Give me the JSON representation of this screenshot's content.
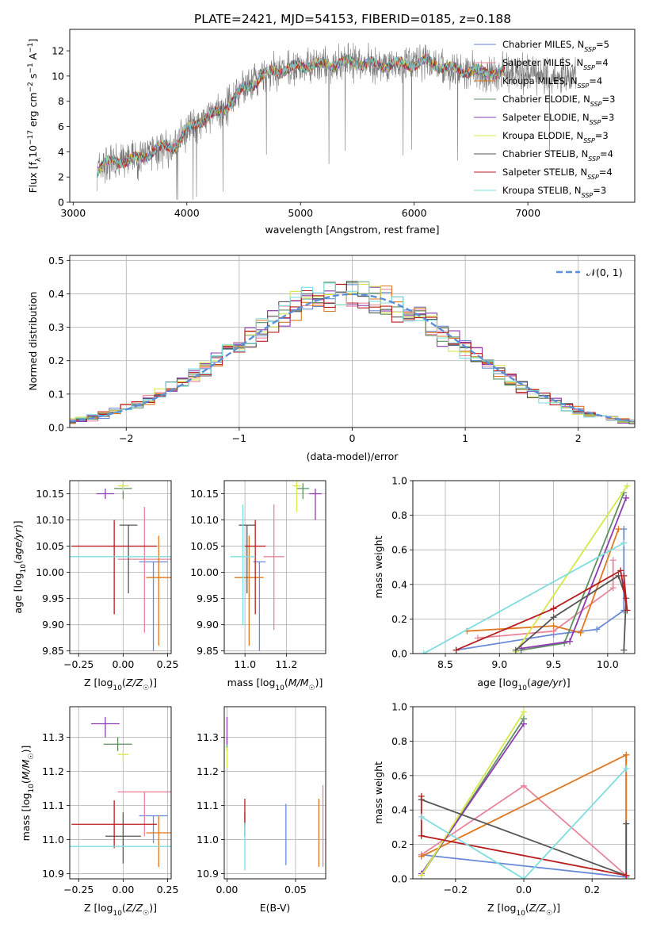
{
  "figure": {
    "title": "PLATE=2421, MJD=54153, FIBERID=0185, z=0.188"
  },
  "colors": {
    "Chabrier MILES": "#6a8ad8",
    "Salpeter MILES": "#e8859a",
    "Kroupa MILES": "#e0771f",
    "Chabrier ELODIE": "#5f8f60",
    "Salpeter ELODIE": "#8e3bb3",
    "Kroupa ELODIE": "#d6e84a",
    "Chabrier STELIB": "#555555",
    "Salpeter STELIB": "#b81e1e",
    "Kroupa STELIB": "#7fdde0"
  },
  "chart_data": [
    {
      "id": "spectrum",
      "type": "line",
      "title": "PLATE=2421, MJD=54153, FIBERID=0185, z=0.188",
      "xlabel": "wavelength [Angstrom, rest frame]",
      "ylabel": "Flux [f_λ 10^-17 erg cm^-2 s^-1 A^-1]",
      "xlim": [
        2970,
        7940
      ],
      "ylim": [
        0,
        13.7
      ],
      "xticks": [
        3000,
        4000,
        5000,
        6000,
        7000
      ],
      "yticks": [
        0,
        2,
        4,
        6,
        8,
        10,
        12
      ],
      "grid": false,
      "legend_position": "right",
      "legend": [
        {
          "label": "Chabrier MILES, N",
          "sub": "SSP",
          "suffix": "=5",
          "model": "Chabrier MILES"
        },
        {
          "label": "Salpeter MILES, N",
          "sub": "SSP",
          "suffix": "=4",
          "model": "Salpeter MILES"
        },
        {
          "label": "Kroupa MILES, N",
          "sub": "SSP",
          "suffix": "=4",
          "model": "Kroupa MILES"
        },
        {
          "label": "Chabrier ELODIE, N",
          "sub": "SSP",
          "suffix": "=3",
          "model": "Chabrier ELODIE"
        },
        {
          "label": "Salpeter ELODIE, N",
          "sub": "SSP",
          "suffix": "=3",
          "model": "Salpeter ELODIE"
        },
        {
          "label": "Kroupa ELODIE, N",
          "sub": "SSP",
          "suffix": "=3",
          "model": "Kroupa ELODIE"
        },
        {
          "label": "Chabrier STELIB, N",
          "sub": "SSP",
          "suffix": "=4",
          "model": "Chabrier STELIB"
        },
        {
          "label": "Salpeter STELIB, N",
          "sub": "SSP",
          "suffix": "=4",
          "model": "Salpeter STELIB"
        },
        {
          "label": "Kroupa STELIB, N",
          "sub": "SSP",
          "suffix": "=3",
          "model": "Kroupa STELIB"
        }
      ],
      "continuum": [
        [
          3210,
          2.6
        ],
        [
          3300,
          3.1
        ],
        [
          3400,
          3.3
        ],
        [
          3500,
          3.3
        ],
        [
          3600,
          3.5
        ],
        [
          3700,
          4.1
        ],
        [
          3800,
          4.3
        ],
        [
          3900,
          4.5
        ],
        [
          4000,
          5.6
        ],
        [
          4100,
          6.4
        ],
        [
          4200,
          6.8
        ],
        [
          4300,
          7.2
        ],
        [
          4400,
          8.1
        ],
        [
          4500,
          9.0
        ],
        [
          4600,
          9.5
        ],
        [
          4700,
          10.2
        ],
        [
          4800,
          10.4
        ],
        [
          4900,
          10.5
        ],
        [
          5000,
          10.8
        ],
        [
          5100,
          10.9
        ],
        [
          5200,
          10.8
        ],
        [
          5300,
          11.0
        ],
        [
          5400,
          11.1
        ],
        [
          5500,
          11.1
        ],
        [
          5600,
          11.0
        ],
        [
          5700,
          10.8
        ],
        [
          5800,
          11.0
        ],
        [
          5900,
          10.9
        ],
        [
          6000,
          11.0
        ],
        [
          6100,
          11.1
        ],
        [
          6200,
          10.9
        ],
        [
          6300,
          10.6
        ],
        [
          6400,
          10.5
        ],
        [
          6500,
          10.4
        ],
        [
          6600,
          10.3
        ],
        [
          6700,
          10.3
        ],
        [
          6800,
          10.2
        ]
      ],
      "model_wavelength_range": [
        3210,
        6800
      ],
      "observed_wavelength_range": [
        3210,
        7420
      ]
    },
    {
      "id": "residuals",
      "type": "line",
      "xlabel": "(data-model)/error",
      "ylabel": "Normed distribution",
      "xlim": [
        -2.5,
        2.5
      ],
      "ylim": [
        0,
        0.515
      ],
      "xticks": [
        -2,
        -1,
        0,
        1,
        2
      ],
      "yticks": [
        0.0,
        0.1,
        0.2,
        0.3,
        0.4,
        0.5
      ],
      "grid": true,
      "legend_position": "top-right",
      "reference_curve": {
        "label": "𝒩(0, 1)",
        "mean": 0,
        "sigma": 1,
        "style": "dashed"
      },
      "histogram": {
        "bin_width": 0.1,
        "distribution": "normal",
        "sigma": 1.0
      }
    },
    {
      "id": "age_vs_Z",
      "type": "scatter",
      "xlabel": "Z [log10(Z/Z☉)]",
      "ylabel": "age  [log10(age/yr)]",
      "xlim": [
        -0.3,
        0.27
      ],
      "ylim": [
        9.845,
        10.175
      ],
      "xticks": [
        -0.25,
        0.0,
        0.25
      ],
      "yticks": [
        9.85,
        9.9,
        9.95,
        10.0,
        10.05,
        10.1,
        10.15
      ],
      "grid": true,
      "points": [
        {
          "model": "Chabrier MILES",
          "x": 0.17,
          "y": 10.02,
          "xerr": 0.08,
          "yerr": [
            0.17,
            0.0
          ]
        },
        {
          "model": "Salpeter MILES",
          "x": 0.12,
          "y": 10.025,
          "xerr": 0.15,
          "yerr": [
            0.14,
            0.1
          ]
        },
        {
          "model": "Kroupa MILES",
          "x": 0.2,
          "y": 9.99,
          "xerr": 0.07,
          "yerr": [
            0.13,
            0.08
          ]
        },
        {
          "model": "Chabrier ELODIE",
          "x": 0.0,
          "y": 10.16,
          "xerr": 0.05,
          "yerr": [
            0.02,
            0.01
          ]
        },
        {
          "model": "Salpeter ELODIE",
          "x": -0.1,
          "y": 10.15,
          "xerr": 0.05,
          "yerr": [
            0.01,
            0.01
          ]
        },
        {
          "model": "Kroupa ELODIE",
          "x": 0.0,
          "y": 10.165,
          "xerr": 0.03,
          "yerr": [
            0.01,
            0.01
          ]
        },
        {
          "model": "Chabrier STELIB",
          "x": 0.03,
          "y": 10.09,
          "xerr": 0.05,
          "yerr": [
            0.13,
            0.0
          ]
        },
        {
          "model": "Salpeter STELIB",
          "x": -0.05,
          "y": 10.05,
          "xerr": 0.24,
          "yerr": [
            0.13,
            0.05
          ]
        },
        {
          "model": "Kroupa STELIB",
          "x": 0.0,
          "y": 10.03,
          "xerr": 0.3,
          "yerr": [
            0.0,
            0.0
          ]
        }
      ]
    },
    {
      "id": "age_vs_mass",
      "type": "scatter",
      "xlabel": "mass [log10(M/M☉)]",
      "xlim": [
        10.9,
        11.39
      ],
      "ylim": [
        9.845,
        10.175
      ],
      "xticks": [
        11.0,
        11.2
      ],
      "yticks": [
        9.85,
        9.9,
        9.95,
        10.0,
        10.05,
        10.1,
        10.15
      ],
      "grid": true,
      "points": [
        {
          "model": "Chabrier MILES",
          "x": 11.07,
          "y": 10.02,
          "xerr": 0.03,
          "yerr": [
            0.17,
            0.0
          ]
        },
        {
          "model": "Salpeter MILES",
          "x": 11.14,
          "y": 10.03,
          "xerr": 0.05,
          "yerr": [
            0.14,
            0.1
          ]
        },
        {
          "model": "Kroupa MILES",
          "x": 11.02,
          "y": 9.99,
          "xerr": 0.07,
          "yerr": [
            0.13,
            0.08
          ]
        },
        {
          "model": "Chabrier ELODIE",
          "x": 11.28,
          "y": 10.16,
          "xerr": 0.03,
          "yerr": [
            0.02,
            0.01
          ]
        },
        {
          "model": "Salpeter ELODIE",
          "x": 11.34,
          "y": 10.15,
          "xerr": 0.03,
          "yerr": [
            0.05,
            0.01
          ]
        },
        {
          "model": "Kroupa ELODIE",
          "x": 11.25,
          "y": 10.165,
          "xerr": 0.02,
          "yerr": [
            0.05,
            0.01
          ]
        },
        {
          "model": "Chabrier STELIB",
          "x": 11.01,
          "y": 10.09,
          "xerr": 0.04,
          "yerr": [
            0.13,
            0.0
          ]
        },
        {
          "model": "Salpeter STELIB",
          "x": 11.05,
          "y": 10.05,
          "xerr": 0.05,
          "yerr": [
            0.13,
            0.05
          ]
        },
        {
          "model": "Kroupa STELIB",
          "x": 10.99,
          "y": 10.03,
          "xerr": 0.06,
          "yerr": [
            0.13,
            0.1
          ]
        }
      ]
    },
    {
      "id": "mass_weight_vs_age",
      "type": "line",
      "xlabel": "age  [log10(age/yr)]",
      "ylabel": "mass weight",
      "xlim": [
        8.2,
        10.25
      ],
      "ylim": [
        0,
        1
      ],
      "xticks": [
        8.5,
        9.0,
        9.5,
        10.0
      ],
      "yticks": [
        0.0,
        0.2,
        0.4,
        0.6,
        0.8,
        1.0
      ],
      "grid": true,
      "series": [
        {
          "model": "Chabrier MILES",
          "x": [
            8.6,
            9.5,
            9.9,
            10.15,
            10.15
          ],
          "y": [
            0.02,
            0.11,
            0.14,
            0.25,
            0.72
          ]
        },
        {
          "model": "Salpeter MILES",
          "x": [
            8.8,
            9.5,
            10.05,
            10.05
          ],
          "y": [
            0.09,
            0.13,
            0.38,
            0.54
          ]
        },
        {
          "model": "Kroupa MILES",
          "x": [
            8.7,
            9.5,
            9.75,
            10.1
          ],
          "y": [
            0.13,
            0.16,
            0.12,
            0.72
          ]
        },
        {
          "model": "Chabrier ELODIE",
          "x": [
            9.2,
            9.6,
            10.15
          ],
          "y": [
            0.02,
            0.06,
            0.93
          ]
        },
        {
          "model": "Salpeter ELODIE",
          "x": [
            9.2,
            9.65,
            10.17
          ],
          "y": [
            0.03,
            0.07,
            0.9
          ]
        },
        {
          "model": "Kroupa ELODIE",
          "x": [
            9.15,
            10.18
          ],
          "y": [
            0.01,
            0.97
          ]
        },
        {
          "model": "Chabrier STELIB",
          "x": [
            9.15,
            9.5,
            10.1,
            10.17,
            10.15
          ],
          "y": [
            0.02,
            0.21,
            0.45,
            0.32,
            0.02
          ]
        },
        {
          "model": "Salpeter STELIB",
          "x": [
            8.6,
            9.5,
            10.12,
            10.18,
            10.15
          ],
          "y": [
            0.02,
            0.26,
            0.48,
            0.25,
            0.45
          ]
        },
        {
          "model": "Kroupa STELIB",
          "x": [
            8.3,
            10.15
          ],
          "y": [
            0.0,
            0.64
          ]
        }
      ]
    },
    {
      "id": "mass_vs_Z",
      "type": "scatter",
      "xlabel": "Z [log10(Z/Z☉)]",
      "ylabel": "mass [log10(M/M☉)]",
      "xlim": [
        -0.3,
        0.27
      ],
      "ylim": [
        10.885,
        11.39
      ],
      "xticks": [
        -0.25,
        0.0,
        0.25
      ],
      "yticks": [
        10.9,
        11.0,
        11.1,
        11.2,
        11.3
      ],
      "grid": true,
      "points": [
        {
          "model": "Chabrier MILES",
          "x": 0.17,
          "y": 11.07,
          "xerr": 0.08,
          "yerr": [
            0.08,
            0.0
          ]
        },
        {
          "model": "Salpeter MILES",
          "x": 0.12,
          "y": 11.14,
          "xerr": 0.15,
          "yerr": [
            0.13,
            0.0
          ]
        },
        {
          "model": "Kroupa MILES",
          "x": 0.2,
          "y": 11.02,
          "xerr": 0.07,
          "yerr": [
            0.1,
            0.05
          ]
        },
        {
          "model": "Chabrier ELODIE",
          "x": -0.03,
          "y": 11.28,
          "xerr": 0.08,
          "yerr": [
            0.02,
            0.02
          ]
        },
        {
          "model": "Salpeter ELODIE",
          "x": -0.1,
          "y": 11.34,
          "xerr": 0.08,
          "yerr": [
            0.04,
            0.02
          ]
        },
        {
          "model": "Kroupa ELODIE",
          "x": 0.0,
          "y": 11.25,
          "xerr": 0.03,
          "yerr": [
            0.02,
            0.01
          ]
        },
        {
          "model": "Chabrier STELIB",
          "x": -0.0,
          "y": 11.01,
          "xerr": 0.1,
          "yerr": [
            0.08,
            0.07
          ]
        },
        {
          "model": "Salpeter STELIB",
          "x": -0.05,
          "y": 11.045,
          "xerr": 0.24,
          "yerr": [
            0.07,
            0.07
          ]
        },
        {
          "model": "Kroupa STELIB",
          "x": 0.0,
          "y": 10.98,
          "xerr": 0.3,
          "yerr": [
            0.0,
            0.0
          ]
        }
      ]
    },
    {
      "id": "mass_vs_EBV",
      "type": "scatter",
      "xlabel": "E(B-V)",
      "xlim": [
        -0.002,
        0.072
      ],
      "ylim": [
        10.885,
        11.39
      ],
      "xticks": [
        0.0,
        0.05
      ],
      "yticks": [
        10.9,
        11.0,
        11.1,
        11.2,
        11.3
      ],
      "grid": true,
      "points": [
        {
          "model": "Chabrier MILES",
          "x": 0.043,
          "y": 11.015,
          "xerr": 0.0,
          "yerr": [
            0.09,
            0.09
          ]
        },
        {
          "model": "Salpeter MILES",
          "x": 0.07,
          "y": 11.07,
          "xerr": 0.0,
          "yerr": [
            0.15,
            0.09
          ]
        },
        {
          "model": "Kroupa MILES",
          "x": 0.067,
          "y": 11.02,
          "xerr": 0.0,
          "yerr": [
            0.1,
            0.1
          ]
        },
        {
          "model": "Chabrier ELODIE",
          "x": 0.0,
          "y": 11.28,
          "xerr": 0.0,
          "yerr": [
            0.02,
            0.02
          ]
        },
        {
          "model": "Salpeter ELODIE",
          "x": 0.0,
          "y": 11.32,
          "xerr": 0.0,
          "yerr": [
            0.04,
            0.04
          ]
        },
        {
          "model": "Kroupa ELODIE",
          "x": 0.0,
          "y": 11.24,
          "xerr": 0.0,
          "yerr": [
            0.03,
            0.03
          ]
        },
        {
          "model": "Chabrier STELIB",
          "x": 0.013,
          "y": 11.04,
          "xerr": 0.0,
          "yerr": [
            0.03,
            0.04
          ]
        },
        {
          "model": "Salpeter STELIB",
          "x": 0.013,
          "y": 11.08,
          "xerr": 0.0,
          "yerr": [
            0.04,
            0.04
          ]
        },
        {
          "model": "Kroupa STELIB",
          "x": 0.013,
          "y": 10.98,
          "xerr": 0.0,
          "yerr": [
            0.07,
            0.07
          ]
        }
      ]
    },
    {
      "id": "mass_weight_vs_Z",
      "type": "line",
      "xlabel": "Z [log10(Z/Z☉)]",
      "ylabel": "mass weight",
      "xlim": [
        -0.325,
        0.325
      ],
      "ylim": [
        0,
        1
      ],
      "xticks": [
        -0.2,
        0.0,
        0.2
      ],
      "yticks": [
        0.0,
        0.2,
        0.4,
        0.6,
        0.8,
        1.0
      ],
      "grid": true,
      "series": [
        {
          "model": "Chabrier MILES",
          "x": [
            -0.3,
            0.3,
            0.3
          ],
          "y": [
            0.14,
            0.01,
            0.72
          ]
        },
        {
          "model": "Salpeter MILES",
          "x": [
            -0.3,
            0.0,
            0.3
          ],
          "y": [
            0.14,
            0.54,
            0.02
          ]
        },
        {
          "model": "Kroupa MILES",
          "x": [
            -0.3,
            0.3,
            0.3
          ],
          "y": [
            0.13,
            0.72,
            0.02
          ]
        },
        {
          "model": "Chabrier ELODIE",
          "x": [
            -0.3,
            0.0
          ],
          "y": [
            0.02,
            0.93
          ]
        },
        {
          "model": "Salpeter ELODIE",
          "x": [
            -0.3,
            0.0
          ],
          "y": [
            0.03,
            0.9
          ]
        },
        {
          "model": "Kroupa ELODIE",
          "x": [
            -0.3,
            0.0
          ],
          "y": [
            0.02,
            0.97
          ]
        },
        {
          "model": "Chabrier STELIB",
          "x": [
            -0.3,
            0.3,
            0.3
          ],
          "y": [
            0.46,
            0.02,
            0.32
          ]
        },
        {
          "model": "Salpeter STELIB",
          "x": [
            -0.3,
            -0.3,
            0.3,
            0.3
          ],
          "y": [
            0.48,
            0.25,
            0.02,
            0.02
          ]
        },
        {
          "model": "Kroupa STELIB",
          "x": [
            -0.3,
            0.0,
            0.3
          ],
          "y": [
            0.36,
            0.0,
            0.64
          ]
        }
      ]
    }
  ]
}
